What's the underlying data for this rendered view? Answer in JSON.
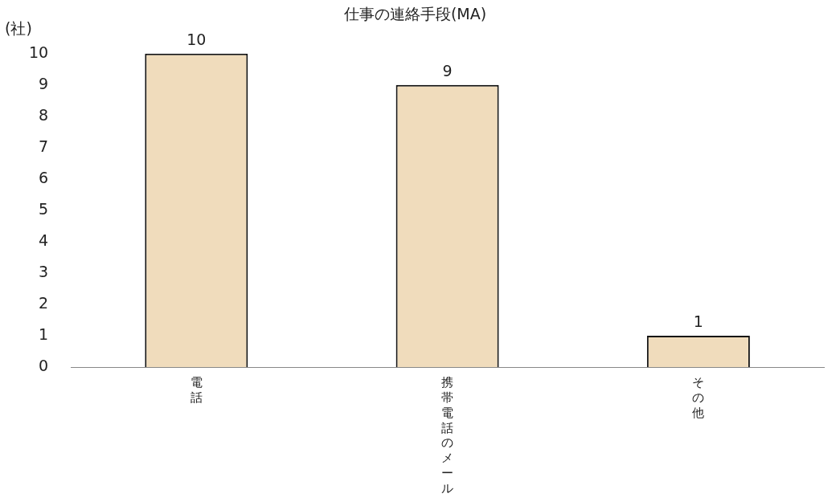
{
  "chart_data": {
    "type": "bar",
    "title": "仕事の連絡手段(MA)",
    "ylabel": "(社)",
    "categories": [
      "電話",
      "携帯電話のメール",
      "その他"
    ],
    "values": [
      10,
      9,
      1
    ],
    "color": "#f0dcbc",
    "ylim": [
      0,
      10
    ],
    "yticks": [
      0,
      1,
      2,
      3,
      4,
      5,
      6,
      7,
      8,
      9,
      10
    ],
    "grid": false,
    "legend": false,
    "data_labels": true
  }
}
